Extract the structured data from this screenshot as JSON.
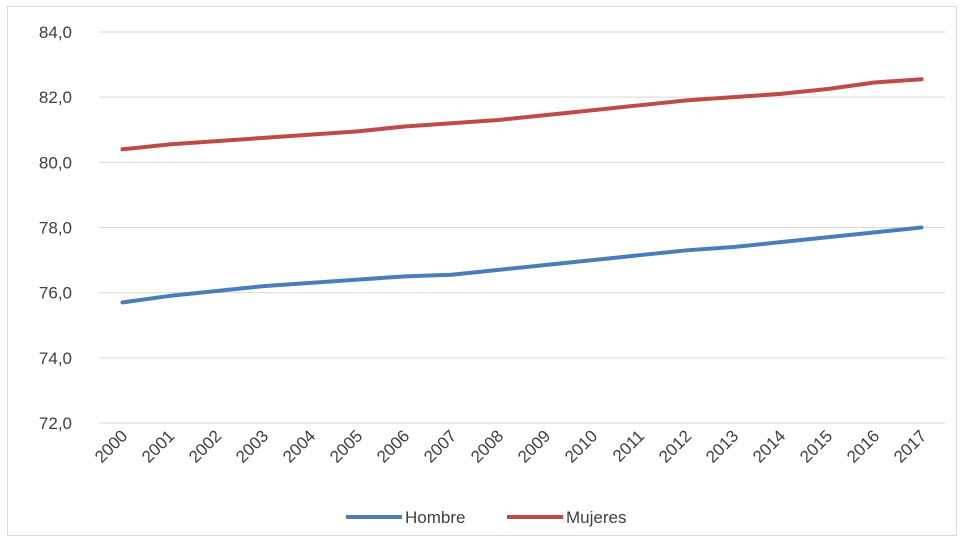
{
  "chart_data": {
    "type": "line",
    "title": "",
    "xlabel": "",
    "ylabel": "",
    "categories": [
      "2000",
      "2001",
      "2002",
      "2003",
      "2004",
      "2005",
      "2006",
      "2007",
      "2008",
      "2009",
      "2010",
      "2011",
      "2012",
      "2013",
      "2014",
      "2015",
      "2016",
      "2017"
    ],
    "ylim": [
      72,
      84
    ],
    "yticks": [
      72,
      74,
      76,
      78,
      80,
      82,
      84
    ],
    "ytick_labels": [
      "72,0",
      "74,0",
      "76,0",
      "78,0",
      "80,0",
      "82,0",
      "84,0"
    ],
    "grid": true,
    "legend_position": "bottom",
    "series": [
      {
        "name": "Hombre",
        "color": "#4a7ebb",
        "values": [
          75.7,
          75.9,
          76.05,
          76.2,
          76.3,
          76.4,
          76.5,
          76.55,
          76.7,
          76.85,
          77.0,
          77.15,
          77.3,
          77.4,
          77.55,
          77.7,
          77.85,
          78.0
        ]
      },
      {
        "name": "Mujeres",
        "color": "#be4b48",
        "values": [
          80.4,
          80.55,
          80.65,
          80.75,
          80.85,
          80.95,
          81.1,
          81.2,
          81.3,
          81.45,
          81.6,
          81.75,
          81.9,
          82.0,
          82.1,
          82.25,
          82.45,
          82.55
        ]
      }
    ]
  }
}
